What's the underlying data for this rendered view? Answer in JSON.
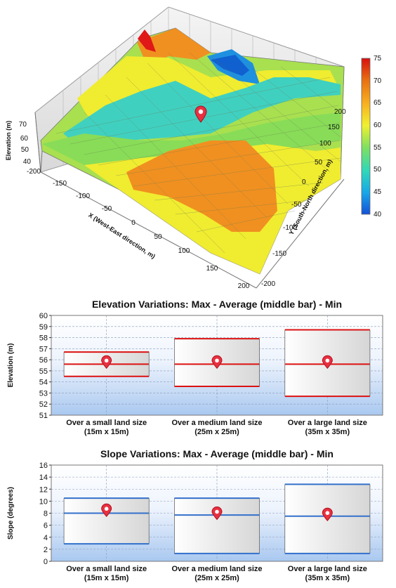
{
  "chart_data": [
    {
      "type": "surface3d",
      "title": "",
      "zlabel": "Elevation (m)",
      "xlabel": "X (West-East direction, m)",
      "ylabel": "Y (South-North direction, m)",
      "x_ticks": [
        "-200",
        "-150",
        "-100",
        "-50",
        "0",
        "50",
        "100",
        "150",
        "200"
      ],
      "y_ticks": [
        "-200",
        "-150",
        "-100",
        "-50",
        "0",
        "50",
        "100",
        "150",
        "200"
      ],
      "z_ticks": [
        "40",
        "50",
        "60",
        "70"
      ],
      "colorbar": {
        "ticks": [
          "40",
          "45",
          "50",
          "55",
          "60",
          "65",
          "70",
          "75"
        ],
        "colors": [
          "#1550d8",
          "#18a8e8",
          "#30d8b8",
          "#80e060",
          "#f0f030",
          "#f8b020",
          "#e87010",
          "#d81010"
        ]
      },
      "marker": {
        "x": 25,
        "y": 25,
        "color": "#e83040"
      }
    },
    {
      "type": "range-box",
      "title": "Elevation Variations: Max - Average (middle bar) - Min",
      "ylabel": "Elevation (m)",
      "ylim": [
        51,
        60
      ],
      "yticks": [
        "51",
        "52",
        "53",
        "54",
        "55",
        "56",
        "57",
        "58",
        "59",
        "60"
      ],
      "categories": [
        {
          "line1": "Over a small land size",
          "line2": "(15m x 15m)"
        },
        {
          "line1": "Over a medium land size",
          "line2": "(25m x 25m)"
        },
        {
          "line1": "Over a large land size",
          "line2": "(35m x 35m)"
        }
      ],
      "series": [
        {
          "max": 56.7,
          "avg": 55.6,
          "min": 54.5,
          "marker": 55.8
        },
        {
          "max": 57.9,
          "avg": 55.6,
          "min": 53.6,
          "marker": 55.8
        },
        {
          "max": 58.7,
          "avg": 55.6,
          "min": 52.7,
          "marker": 55.8
        }
      ],
      "line_color": "#dd1111",
      "grid": true
    },
    {
      "type": "range-box",
      "title": "Slope Variations: Max - Average (middle bar) - Min",
      "ylabel": "Slope (degrees)",
      "ylim": [
        0,
        16
      ],
      "yticks": [
        "0",
        "2",
        "4",
        "6",
        "8",
        "10",
        "12",
        "14",
        "16"
      ],
      "categories": [
        {
          "line1": "Over a small land size",
          "line2": "(15m x 15m)"
        },
        {
          "line1": "Over a medium land size",
          "line2": "(25m x 25m)"
        },
        {
          "line1": "Over a large land size",
          "line2": "(35m x 35m)"
        }
      ],
      "series": [
        {
          "max": 10.5,
          "avg": 8.0,
          "min": 2.9,
          "marker": 8.5
        },
        {
          "max": 10.5,
          "avg": 7.7,
          "min": 1.3,
          "marker": 8.0
        },
        {
          "max": 12.8,
          "avg": 7.5,
          "min": 1.3,
          "marker": 7.8
        }
      ],
      "line_color": "#3370cc",
      "grid": true
    }
  ]
}
